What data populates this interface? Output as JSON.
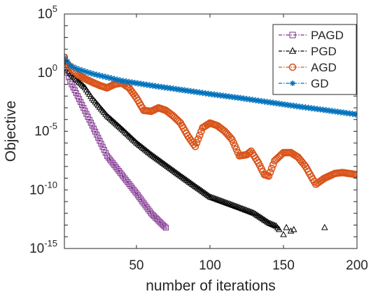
{
  "chart_data": {
    "type": "line",
    "xlabel": "number of iterations",
    "ylabel": "Objective",
    "xlim": [
      1,
      200
    ],
    "ylim": [
      1e-15,
      100000.0
    ],
    "yscale": "log",
    "x_ticks": [
      50,
      100,
      150,
      200
    ],
    "y_ticks": [
      {
        "value": 100000.0,
        "base": "10",
        "exp": "5"
      },
      {
        "value": 1.0,
        "base": "10",
        "exp": "0"
      },
      {
        "value": 1e-05,
        "base": "10",
        "exp": "-5"
      },
      {
        "value": 1e-10,
        "base": "10",
        "exp": "-10"
      },
      {
        "value": 1e-15,
        "base": "10",
        "exp": "-15"
      }
    ],
    "grid": false,
    "legend_position": "top-right",
    "series": [
      {
        "name": "PAGD",
        "color": "#7E2F8E",
        "marker": "square",
        "line": "dash-dot",
        "points": [
          [
            1,
            20
          ],
          [
            2,
            3
          ],
          [
            3,
            1
          ],
          [
            4,
            0.4
          ],
          [
            5,
            0.18
          ],
          [
            10,
            0.01
          ],
          [
            20,
            3e-05
          ],
          [
            30,
            8e-08
          ],
          [
            40,
            2e-09
          ],
          [
            50,
            5e-11
          ],
          [
            60,
            1e-12
          ],
          [
            68,
            1e-13
          ],
          [
            70,
            6e-14
          ]
        ]
      },
      {
        "name": "PGD",
        "color": "#000000",
        "marker": "triangle",
        "line": "dash-dot",
        "points": [
          [
            1,
            8
          ],
          [
            3,
            2
          ],
          [
            5,
            0.8
          ],
          [
            10,
            0.2
          ],
          [
            15,
            0.05
          ],
          [
            20,
            0.006
          ],
          [
            30,
            0.0002
          ],
          [
            40,
            1.5e-05
          ],
          [
            50,
            1e-06
          ],
          [
            60,
            1e-07
          ],
          [
            80,
            1.5e-09
          ],
          [
            100,
            2.5e-11
          ],
          [
            120,
            3e-12
          ],
          [
            130,
            1e-12
          ],
          [
            140,
            1.5e-13
          ],
          [
            145,
            8e-14
          ],
          [
            150,
            1.5e-14
          ],
          [
            152,
            6e-14
          ],
          [
            155,
            3e-14
          ],
          [
            157,
            4e-14
          ],
          [
            178,
            6e-14
          ]
        ]
      },
      {
        "name": "AGD",
        "color": "#D95319",
        "marker": "circle",
        "line": "dash-dot",
        "points": [
          [
            1,
            20
          ],
          [
            2,
            8
          ],
          [
            4,
            4
          ],
          [
            6,
            2
          ],
          [
            10,
            0.7
          ],
          [
            15,
            0.3
          ],
          [
            20,
            0.15
          ],
          [
            25,
            0.08
          ],
          [
            30,
            0.05
          ],
          [
            35,
            0.1
          ],
          [
            40,
            0.13
          ],
          [
            45,
            0.05
          ],
          [
            50,
            0.007
          ],
          [
            55,
            0.0006
          ],
          [
            60,
            0.0005
          ],
          [
            65,
            0.001
          ],
          [
            70,
            0.0006
          ],
          [
            75,
            0.0002
          ],
          [
            80,
            5e-05
          ],
          [
            85,
            4e-06
          ],
          [
            90,
            5e-07
          ],
          [
            95,
            2e-05
          ],
          [
            100,
            5e-05
          ],
          [
            105,
            3e-05
          ],
          [
            110,
            1e-05
          ],
          [
            115,
            2e-06
          ],
          [
            120,
            8e-08
          ],
          [
            125,
            1e-07
          ],
          [
            128,
            2e-07
          ],
          [
            133,
            2e-08
          ],
          [
            137,
            2e-09
          ],
          [
            140,
            1.5e-09
          ],
          [
            144,
            3e-08
          ],
          [
            150,
            1.5e-07
          ],
          [
            155,
            1.5e-07
          ],
          [
            160,
            6e-08
          ],
          [
            165,
            1e-08
          ],
          [
            170,
            8e-10
          ],
          [
            172,
            3e-10
          ],
          [
            178,
            1e-09
          ],
          [
            185,
            2.5e-09
          ],
          [
            190,
            3e-09
          ],
          [
            200,
            2e-09
          ]
        ]
      },
      {
        "name": "GD",
        "color": "#0072BD",
        "marker": "asterisk",
        "line": "dash-dot",
        "points": [
          [
            1,
            18
          ],
          [
            5,
            4
          ],
          [
            10,
            2
          ],
          [
            20,
            0.8
          ],
          [
            40,
            0.2
          ],
          [
            60,
            0.08
          ],
          [
            80,
            0.035
          ],
          [
            100,
            0.015
          ],
          [
            120,
            0.007
          ],
          [
            140,
            0.003
          ],
          [
            160,
            0.0013
          ],
          [
            180,
            0.0006
          ],
          [
            200,
            0.00027
          ]
        ]
      }
    ]
  }
}
